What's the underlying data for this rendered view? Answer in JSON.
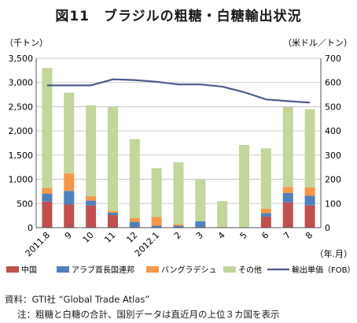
{
  "title": "図11　ブラジルの粗糖・白糖輸出状況",
  "left_unit": "（千トン）",
  "right_unit": "（米ドル／トン）",
  "x_unit": "（年.月）",
  "source": "資料：GTI社 “Global Trade Atlas”",
  "note": "注：粗糖と白糖の合計、国別データは直近月の上位３カ国を表示",
  "colors": {
    "china": "#c0504d",
    "uae": "#4f81bd",
    "bangladesh": "#f79646",
    "other": "#c3d69b",
    "price": "#4e5a8c"
  },
  "chart_data": {
    "type": "bar",
    "stacked": true,
    "categories": [
      "2011.8",
      "9",
      "10",
      "11",
      "12",
      "2012.1",
      "2",
      "3",
      "4",
      "5",
      "6",
      "7",
      "8"
    ],
    "series": [
      {
        "name": "中国",
        "values": [
          540,
          480,
          460,
          260,
          0,
          0,
          0,
          0,
          0,
          0,
          230,
          520,
          460
        ]
      },
      {
        "name": "アラブ首長国連邦",
        "values": [
          160,
          280,
          100,
          50,
          120,
          40,
          40,
          130,
          0,
          0,
          70,
          200,
          200
        ]
      },
      {
        "name": "バングラデシュ",
        "values": [
          120,
          360,
          90,
          30,
          80,
          180,
          30,
          0,
          0,
          0,
          90,
          120,
          170
        ]
      },
      {
        "name": "その他",
        "values": [
          2480,
          1670,
          1880,
          2160,
          1630,
          1010,
          1280,
          860,
          550,
          1710,
          1250,
          1650,
          1620
        ]
      }
    ],
    "line": {
      "name": "輸出単価（FOB）",
      "axis": "right",
      "values": [
        588,
        588,
        588,
        613,
        610,
        603,
        592,
        592,
        583,
        560,
        530,
        523,
        517
      ]
    },
    "y_left": {
      "range": [
        0,
        3500
      ],
      "ticks": [
        "0",
        "500",
        "1,000",
        "1,500",
        "2,000",
        "2,500",
        "3,000",
        "3,500"
      ]
    },
    "y_right": {
      "range": [
        0,
        700
      ],
      "ticks": [
        "0",
        "100",
        "200",
        "300",
        "400",
        "500",
        "600",
        "700"
      ]
    },
    "grid": true,
    "legend": "bottom"
  }
}
